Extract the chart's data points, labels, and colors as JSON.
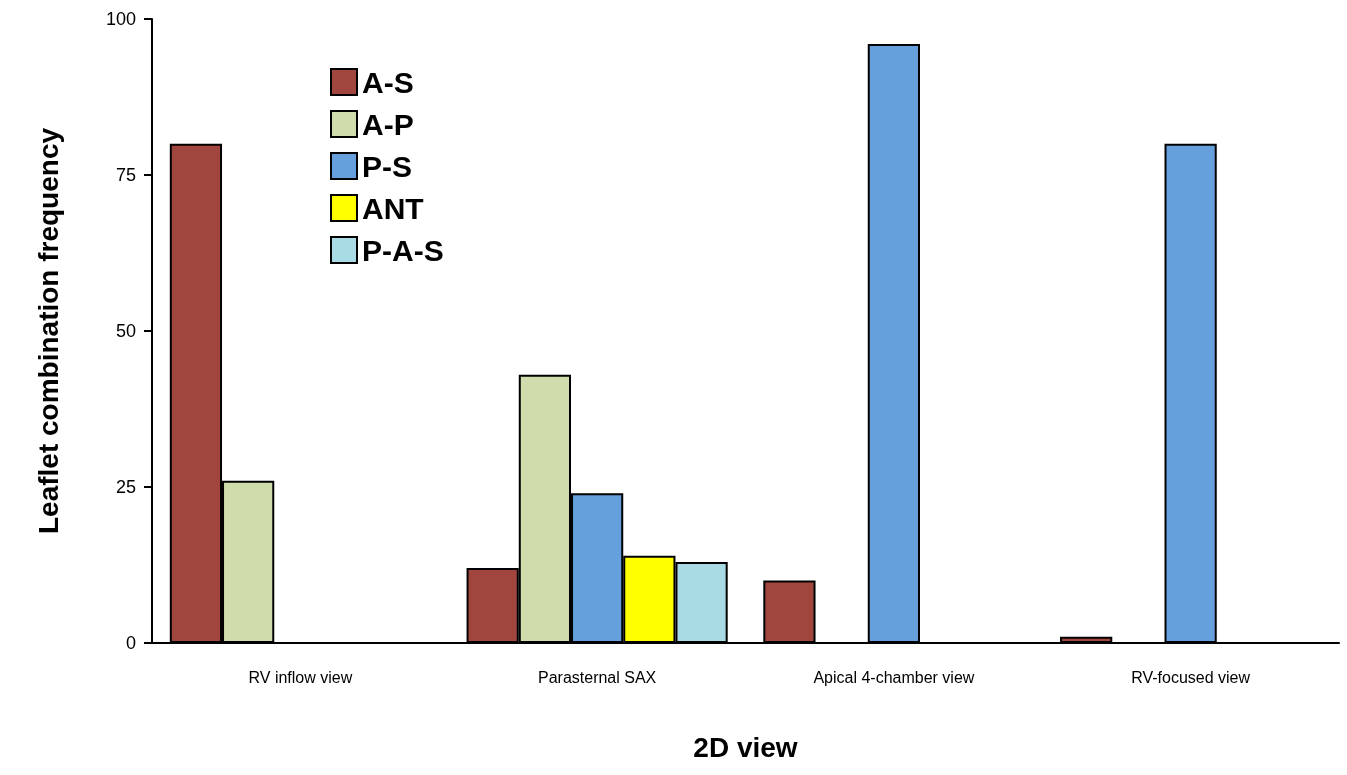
{
  "chart_data": {
    "type": "bar",
    "xlabel": "2D view",
    "ylabel": "Leaflet combination frequency",
    "categories": [
      "RV inflow view",
      "Parasternal SAX",
      "Apical 4-chamber view",
      "RV-focused view"
    ],
    "series": [
      {
        "name": "A-S",
        "color": "#a0463f",
        "values": [
          80,
          12,
          10,
          1
        ]
      },
      {
        "name": "A-P",
        "color": "#cfdcab",
        "values": [
          26,
          43,
          null,
          null
        ]
      },
      {
        "name": "P-S",
        "color": "#65a0dd",
        "values": [
          null,
          24,
          96,
          80
        ]
      },
      {
        "name": "ANT",
        "color": "#ffff00",
        "values": [
          null,
          14,
          null,
          null
        ]
      },
      {
        "name": "P-A-S",
        "color": "#a8dbe4",
        "values": [
          null,
          13,
          null,
          null
        ]
      }
    ],
    "ylim": [
      0,
      100
    ],
    "yticks": [
      0,
      25,
      50,
      75,
      100
    ],
    "grid": false,
    "legend": "top left"
  }
}
